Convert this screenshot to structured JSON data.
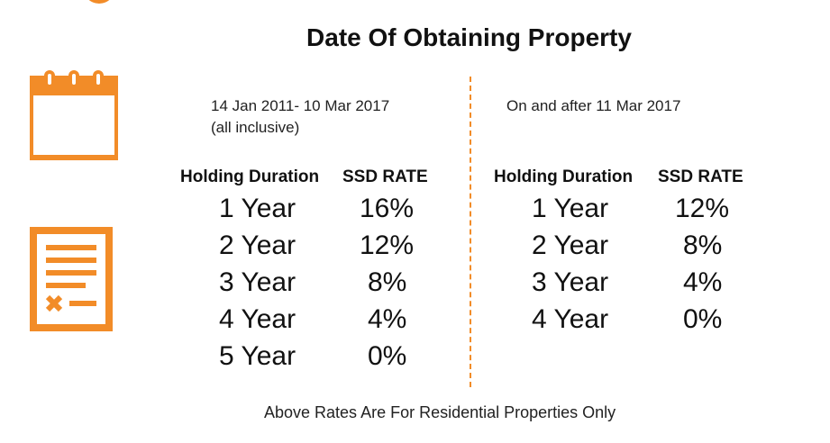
{
  "title": "Date Of Obtaining Property",
  "periods": [
    {
      "label_line1": "14 Jan 2011- 10 Mar 2017",
      "label_line2": "(all inclusive)",
      "header_duration": "Holding Duration",
      "header_rate": "SSD RATE",
      "rows": [
        {
          "duration": "1 Year",
          "rate": "16%"
        },
        {
          "duration": "2 Year",
          "rate": "12%"
        },
        {
          "duration": "3 Year",
          "rate": "8%"
        },
        {
          "duration": "4 Year",
          "rate": "4%"
        },
        {
          "duration": "5 Year",
          "rate": "0%"
        }
      ]
    },
    {
      "label_line1": "On and after 11 Mar 2017",
      "header_duration": "Holding Duration",
      "header_rate": "SSD RATE",
      "rows": [
        {
          "duration": "1 Year",
          "rate": "12%"
        },
        {
          "duration": "2 Year",
          "rate": "8%"
        },
        {
          "duration": "3 Year",
          "rate": "4%"
        },
        {
          "duration": "4 Year",
          "rate": "0%"
        }
      ]
    }
  ],
  "footnote": "Above Rates Are For Residential Properties Only",
  "colors": {
    "accent": "#F28C28",
    "text": "#111111"
  },
  "icons": [
    "calendar-icon",
    "document-icon"
  ]
}
